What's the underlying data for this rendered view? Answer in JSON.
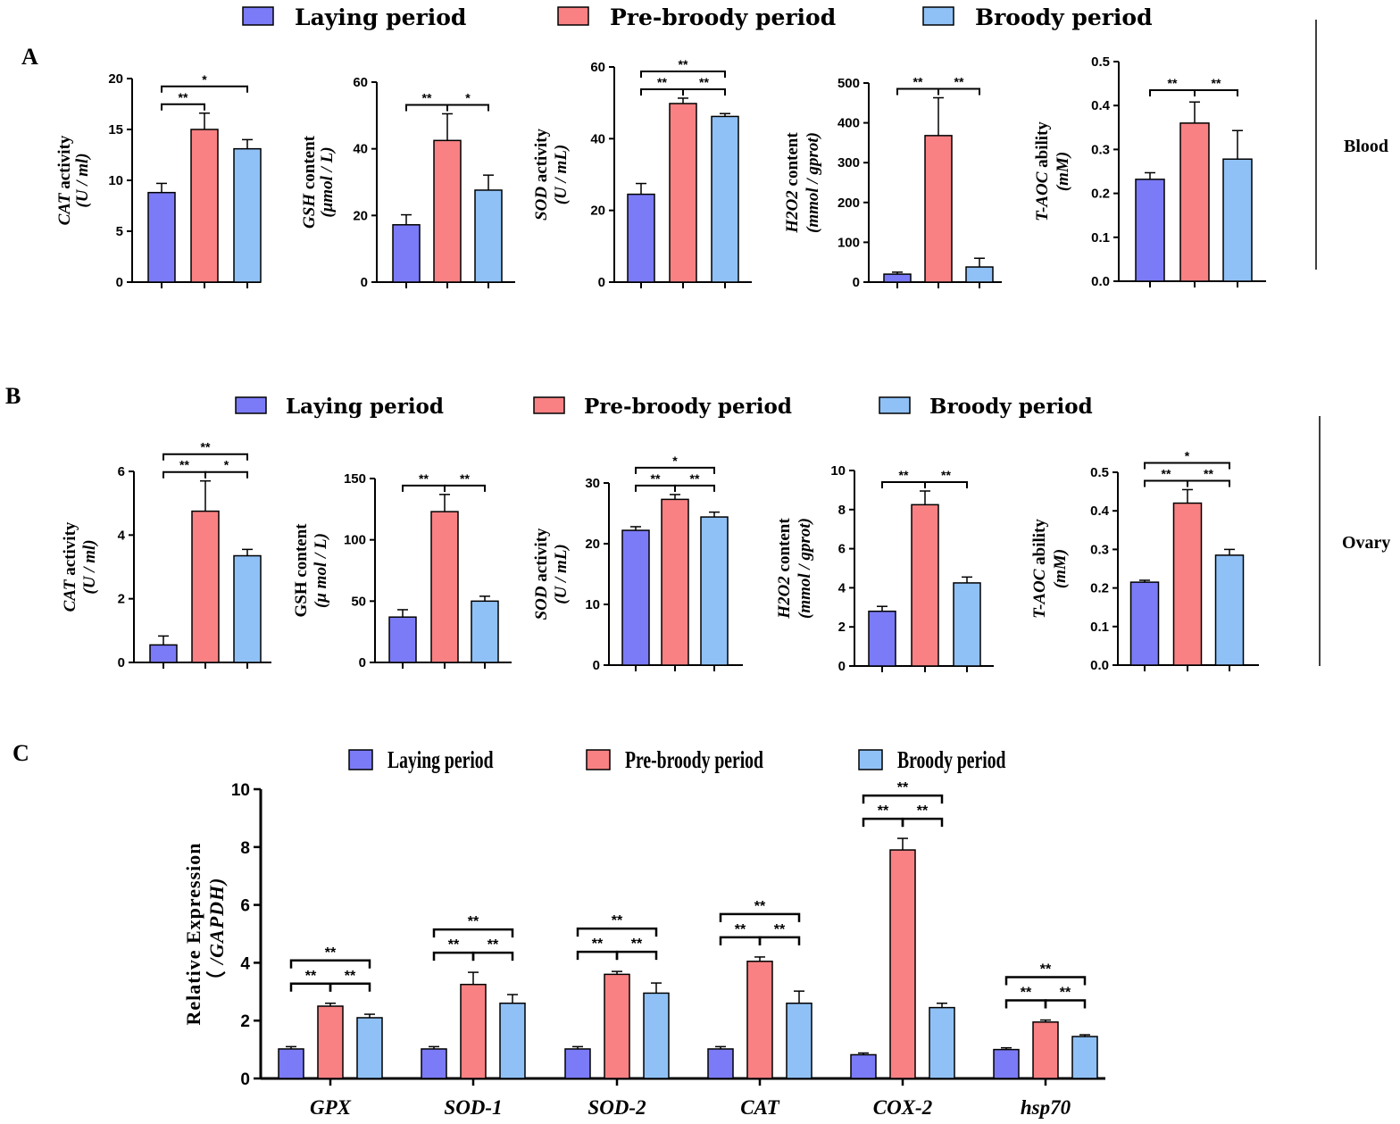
{
  "colors": {
    "laying": "#7b7bf7",
    "prebroody": "#f98183",
    "broody": "#8fc1f7",
    "axis": "#000000"
  },
  "legend": {
    "items": [
      "Laying period",
      "Pre-broody period",
      "Broody period"
    ]
  },
  "panels": {
    "A": {
      "letter": "A",
      "side_label": "Blood"
    },
    "B": {
      "letter": "B",
      "side_label": "Ovary"
    },
    "C": {
      "letter": "C"
    }
  },
  "chart_data": [
    {
      "id": "A1",
      "panel": "A",
      "type": "bar",
      "ylabel_italic": "CAT",
      "ylabel_rest": " activity",
      "ylabel_unit": "(U / ml)",
      "ylim": [
        0,
        20
      ],
      "yticks": [
        0,
        5,
        10,
        15,
        20
      ],
      "series": [
        {
          "name": "Laying period",
          "value": 8.8,
          "error": 0.9
        },
        {
          "name": "Pre-broody period",
          "value": 15.0,
          "error": 1.6
        },
        {
          "name": "Broody period",
          "value": 13.1,
          "error": 0.9
        }
      ],
      "sig": [
        {
          "from": 0,
          "to": 1,
          "label": "**",
          "level": 1
        },
        {
          "from": 0,
          "to": 2,
          "label": "*",
          "level": 2
        }
      ]
    },
    {
      "id": "A2",
      "panel": "A",
      "type": "bar",
      "ylabel_italic": "GSH",
      "ylabel_rest": " content",
      "ylabel_unit": "(μmol / L)",
      "ylim": [
        0,
        60
      ],
      "yticks": [
        0,
        20,
        40,
        60
      ],
      "series": [
        {
          "name": "Laying period",
          "value": 17.2,
          "error": 3.0
        },
        {
          "name": "Pre-broody period",
          "value": 42.5,
          "error": 8.0
        },
        {
          "name": "Broody period",
          "value": 27.6,
          "error": 4.5
        }
      ],
      "sig": [
        {
          "from": 0,
          "to": 1,
          "label": "**",
          "level": 1
        },
        {
          "from": 1,
          "to": 2,
          "label": "*",
          "level": 1
        }
      ]
    },
    {
      "id": "A3",
      "panel": "A",
      "type": "bar",
      "ylabel_italic": "SOD",
      "ylabel_rest": " activity",
      "ylabel_unit": "(U / mL)",
      "ylim": [
        0,
        60
      ],
      "yticks": [
        0,
        20,
        40,
        60
      ],
      "series": [
        {
          "name": "Laying period",
          "value": 24.5,
          "error": 3.0
        },
        {
          "name": "Pre-broody period",
          "value": 49.8,
          "error": 1.5
        },
        {
          "name": "Broody period",
          "value": 46.2,
          "error": 0.8
        }
      ],
      "sig": [
        {
          "from": 0,
          "to": 1,
          "label": "**",
          "level": 1
        },
        {
          "from": 1,
          "to": 2,
          "label": "**",
          "level": 1
        },
        {
          "from": 0,
          "to": 2,
          "label": "**",
          "level": 2
        }
      ]
    },
    {
      "id": "A4",
      "panel": "A",
      "type": "bar",
      "ylabel_italic": "H2O2",
      "ylabel_rest": "  content",
      "ylabel_unit": "(mmol / gprot)",
      "ylim": [
        0,
        500
      ],
      "yticks": [
        0,
        100,
        200,
        300,
        400,
        500
      ],
      "series": [
        {
          "name": "Laying period",
          "value": 20,
          "error": 5
        },
        {
          "name": "Pre-broody period",
          "value": 368,
          "error": 95
        },
        {
          "name": "Broody period",
          "value": 38,
          "error": 22
        }
      ],
      "sig": [
        {
          "from": 0,
          "to": 1,
          "label": "**",
          "level": 1
        },
        {
          "from": 1,
          "to": 2,
          "label": "**",
          "level": 1
        }
      ]
    },
    {
      "id": "A5",
      "panel": "A",
      "type": "bar",
      "ylabel_italic": "T-AOC",
      "ylabel_rest": " ability",
      "ylabel_unit": "(mM)",
      "ylim": [
        0,
        0.5
      ],
      "yticks": [
        0.0,
        0.1,
        0.2,
        0.3,
        0.4,
        0.5
      ],
      "tick_decimals": 1,
      "series": [
        {
          "name": "Laying period",
          "value": 0.232,
          "error": 0.015
        },
        {
          "name": "Pre-broody period",
          "value": 0.36,
          "error": 0.048
        },
        {
          "name": "Broody period",
          "value": 0.278,
          "error": 0.065
        }
      ],
      "sig": [
        {
          "from": 0,
          "to": 1,
          "label": "**",
          "level": 1
        },
        {
          "from": 1,
          "to": 2,
          "label": "**",
          "level": 1
        }
      ]
    },
    {
      "id": "B1",
      "panel": "B",
      "type": "bar",
      "ylabel_italic": "CAT",
      "ylabel_rest": " activity",
      "ylabel_unit": "(U / ml)",
      "ylim": [
        0,
        6
      ],
      "yticks": [
        0,
        2,
        4,
        6
      ],
      "series": [
        {
          "name": "Laying period",
          "value": 0.55,
          "error": 0.28
        },
        {
          "name": "Pre-broody period",
          "value": 4.75,
          "error": 0.95
        },
        {
          "name": "Broody period",
          "value": 3.35,
          "error": 0.2
        }
      ],
      "sig": [
        {
          "from": 0,
          "to": 1,
          "label": "**",
          "level": 1
        },
        {
          "from": 1,
          "to": 2,
          "label": "*",
          "level": 1
        },
        {
          "from": 0,
          "to": 2,
          "label": "**",
          "level": 2
        }
      ]
    },
    {
      "id": "B2",
      "panel": "B",
      "type": "bar",
      "ylabel_italic": "",
      "ylabel_rest": "GSH content",
      "ylabel_unit": "(μ mol / L)",
      "ylim": [
        0,
        150
      ],
      "yticks": [
        0,
        50,
        100,
        150
      ],
      "series": [
        {
          "name": "Laying period",
          "value": 37,
          "error": 6
        },
        {
          "name": "Pre-broody period",
          "value": 123,
          "error": 14
        },
        {
          "name": "Broody period",
          "value": 50,
          "error": 4
        }
      ],
      "sig": [
        {
          "from": 0,
          "to": 1,
          "label": "**",
          "level": 1
        },
        {
          "from": 1,
          "to": 2,
          "label": "**",
          "level": 1
        }
      ]
    },
    {
      "id": "B3",
      "panel": "B",
      "type": "bar",
      "ylabel_italic": "SOD",
      "ylabel_rest": " activity",
      "ylabel_unit": "(U / mL)",
      "ylim": [
        0,
        30
      ],
      "yticks": [
        0,
        10,
        20,
        30
      ],
      "series": [
        {
          "name": "Laying period",
          "value": 22.2,
          "error": 0.6
        },
        {
          "name": "Pre-broody period",
          "value": 27.3,
          "error": 0.8
        },
        {
          "name": "Broody period",
          "value": 24.4,
          "error": 0.8
        }
      ],
      "sig": [
        {
          "from": 0,
          "to": 1,
          "label": "**",
          "level": 1
        },
        {
          "from": 1,
          "to": 2,
          "label": "**",
          "level": 1
        },
        {
          "from": 0,
          "to": 2,
          "label": "*",
          "level": 2
        }
      ]
    },
    {
      "id": "B4",
      "panel": "B",
      "type": "bar",
      "ylabel_italic": "H2O2",
      "ylabel_rest": "  content",
      "ylabel_unit": "(mmol / gprot)",
      "ylim": [
        0,
        10
      ],
      "yticks": [
        0,
        2,
        4,
        6,
        8,
        10
      ],
      "series": [
        {
          "name": "Laying period",
          "value": 2.8,
          "error": 0.25
        },
        {
          "name": "Pre-broody period",
          "value": 8.25,
          "error": 0.7
        },
        {
          "name": "Broody period",
          "value": 4.25,
          "error": 0.3
        }
      ],
      "sig": [
        {
          "from": 0,
          "to": 1,
          "label": "**",
          "level": 1
        },
        {
          "from": 1,
          "to": 2,
          "label": "**",
          "level": 1
        }
      ]
    },
    {
      "id": "B5",
      "panel": "B",
      "type": "bar",
      "ylabel_italic": "T-AOC",
      "ylabel_rest": " ability",
      "ylabel_unit": "(mM)",
      "ylim": [
        0,
        0.5
      ],
      "yticks": [
        0.0,
        0.1,
        0.2,
        0.3,
        0.4,
        0.5
      ],
      "tick_decimals": 1,
      "series": [
        {
          "name": "Laying period",
          "value": 0.215,
          "error": 0.005
        },
        {
          "name": "Pre-broody period",
          "value": 0.42,
          "error": 0.035
        },
        {
          "name": "Broody period",
          "value": 0.285,
          "error": 0.015
        }
      ],
      "sig": [
        {
          "from": 0,
          "to": 1,
          "label": "**",
          "level": 1
        },
        {
          "from": 1,
          "to": 2,
          "label": "**",
          "level": 1
        },
        {
          "from": 0,
          "to": 2,
          "label": "*",
          "level": 2
        }
      ]
    },
    {
      "id": "C",
      "panel": "C",
      "type": "bar",
      "ylabel": "Relative Expression",
      "ylabel_sub_paren": "（",
      "ylabel_sub": " /GAPDH)",
      "ylim": [
        0,
        10
      ],
      "yticks": [
        0,
        2,
        4,
        6,
        8,
        10
      ],
      "categories": [
        "GPX",
        "SOD-1",
        "SOD-2",
        "CAT",
        "COX-2",
        "hsp70"
      ],
      "series": [
        {
          "name": "Laying period",
          "values": [
            1.02,
            1.02,
            1.02,
            1.02,
            0.82,
            1.0
          ],
          "errors": [
            0.08,
            0.08,
            0.08,
            0.08,
            0.06,
            0.06
          ]
        },
        {
          "name": "Pre-broody period",
          "values": [
            2.5,
            3.25,
            3.6,
            4.05,
            7.9,
            1.95
          ],
          "errors": [
            0.1,
            0.42,
            0.1,
            0.15,
            0.4,
            0.07
          ]
        },
        {
          "name": "Broody period",
          "values": [
            2.1,
            2.6,
            2.95,
            2.6,
            2.45,
            1.45
          ],
          "errors": [
            0.12,
            0.3,
            0.35,
            0.42,
            0.15,
            0.06
          ]
        }
      ],
      "sig_per_category": [
        [
          {
            "from": 0,
            "to": 1,
            "label": "**",
            "level": 1
          },
          {
            "from": 1,
            "to": 2,
            "label": "**",
            "level": 1
          },
          {
            "from": 0,
            "to": 2,
            "label": "**",
            "level": 2
          }
        ]
      ]
    }
  ]
}
